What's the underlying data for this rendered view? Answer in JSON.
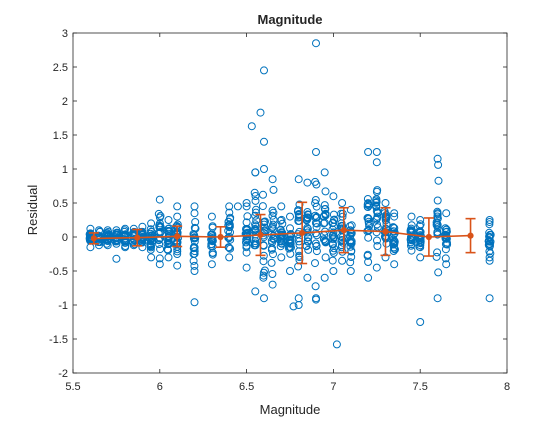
{
  "chart_data": {
    "type": "scatter",
    "title": "Magnitude",
    "xlabel": "Magnitude",
    "ylabel": "Residual",
    "xlim": [
      5.5,
      8
    ],
    "ylim": [
      -2,
      3
    ],
    "xticks": [
      "5.5",
      "6",
      "6.5",
      "7",
      "7.5",
      "8"
    ],
    "yticks": [
      "-2",
      "-1.5",
      "-1",
      "-0.5",
      "0",
      "0.5",
      "1",
      "1.5",
      "2",
      "2.5",
      "3"
    ],
    "grid": false,
    "colors": {
      "points": "#0072BD",
      "trend": "#D95319",
      "axes": "#262626"
    },
    "magnitude_groups": [
      {
        "x": 5.6,
        "ymin": -0.15,
        "ymax": 0.12
      },
      {
        "x": 5.65,
        "ymin": -0.12,
        "ymax": 0.1
      },
      {
        "x": 5.7,
        "ymin": -0.12,
        "ymax": 0.1
      },
      {
        "x": 5.75,
        "ymin": -0.1,
        "ymax": 0.1
      },
      {
        "x": 5.8,
        "ymin": -0.15,
        "ymax": 0.12
      },
      {
        "x": 5.85,
        "ymin": -0.12,
        "ymax": 0.12
      },
      {
        "x": 5.9,
        "ymin": -0.15,
        "ymax": 0.15
      },
      {
        "x": 5.95,
        "ymin": -0.3,
        "ymax": 0.2
      },
      {
        "x": 6.0,
        "ymin": -0.4,
        "ymax": 0.55
      },
      {
        "x": 6.05,
        "ymin": -0.3,
        "ymax": 0.25
      },
      {
        "x": 6.1,
        "ymin": -0.25,
        "ymax": 0.3
      },
      {
        "x": 6.2,
        "ymin": -0.5,
        "ymax": 0.35
      },
      {
        "x": 6.3,
        "ymin": -0.4,
        "ymax": 0.3
      },
      {
        "x": 6.4,
        "ymin": -0.3,
        "ymax": 0.45
      },
      {
        "x": 6.5,
        "ymin": -0.45,
        "ymax": 0.5
      },
      {
        "x": 6.55,
        "ymin": -0.8,
        "ymax": 0.95
      },
      {
        "x": 6.6,
        "ymin": -0.9,
        "ymax": 1.0
      },
      {
        "x": 6.65,
        "ymin": -0.7,
        "ymax": 0.85
      },
      {
        "x": 6.7,
        "ymin": -0.3,
        "ymax": 0.45
      },
      {
        "x": 6.75,
        "ymin": -0.5,
        "ymax": 0.3
      },
      {
        "x": 6.8,
        "ymin": -0.9,
        "ymax": 0.85
      },
      {
        "x": 6.85,
        "ymin": -0.6,
        "ymax": 0.8
      },
      {
        "x": 6.9,
        "ymin": -0.9,
        "ymax": 1.25
      },
      {
        "x": 6.95,
        "ymin": -0.6,
        "ymax": 0.95
      },
      {
        "x": 7.0,
        "ymin": -0.5,
        "ymax": 0.6
      },
      {
        "x": 7.05,
        "ymin": -0.35,
        "ymax": 0.5
      },
      {
        "x": 7.1,
        "ymin": -0.5,
        "ymax": 0.4
      },
      {
        "x": 7.2,
        "ymin": -0.6,
        "ymax": 1.25
      },
      {
        "x": 7.25,
        "ymin": -0.45,
        "ymax": 1.1
      },
      {
        "x": 7.3,
        "ymin": -0.3,
        "ymax": 0.5
      },
      {
        "x": 7.35,
        "ymin": -0.4,
        "ymax": 0.3
      },
      {
        "x": 7.45,
        "ymin": -0.2,
        "ymax": 0.3
      },
      {
        "x": 7.5,
        "ymin": -0.3,
        "ymax": 0.25
      },
      {
        "x": 7.6,
        "ymin": -0.9,
        "ymax": 1.15
      },
      {
        "x": 7.65,
        "ymin": -0.4,
        "ymax": 0.35
      },
      {
        "x": 7.9,
        "ymin": -0.35,
        "ymax": 0.25
      }
    ],
    "outliers": [
      {
        "x": 6.9,
        "y": 2.85
      },
      {
        "x": 6.6,
        "y": 2.45
      },
      {
        "x": 6.58,
        "y": 1.83
      },
      {
        "x": 6.53,
        "y": 1.63
      },
      {
        "x": 6.6,
        "y": 1.4
      },
      {
        "x": 7.25,
        "y": 1.25
      },
      {
        "x": 6.55,
        "y": 0.95
      },
      {
        "x": 6.2,
        "y": -0.96
      },
      {
        "x": 6.77,
        "y": -1.02
      },
      {
        "x": 6.8,
        "y": -1.0
      },
      {
        "x": 6.9,
        "y": -0.92
      },
      {
        "x": 7.02,
        "y": -1.58
      },
      {
        "x": 7.5,
        "y": -1.25
      },
      {
        "x": 7.9,
        "y": -0.9
      },
      {
        "x": 7.9,
        "y": 0.22
      },
      {
        "x": 7.9,
        "y": -0.3
      },
      {
        "x": 5.75,
        "y": -0.32
      },
      {
        "x": 6.1,
        "y": -0.42
      },
      {
        "x": 6.45,
        "y": 0.45
      },
      {
        "x": 6.5,
        "y": 0.45
      },
      {
        "x": 7.35,
        "y": 0.35
      },
      {
        "x": 6.2,
        "y": 0.45
      },
      {
        "x": 6.1,
        "y": 0.45
      }
    ],
    "trend": [
      {
        "x": 5.62,
        "y": -0.02,
        "err": 0.08
      },
      {
        "x": 5.87,
        "y": -0.01,
        "err": 0.12
      },
      {
        "x": 6.1,
        "y": 0.01,
        "err": 0.15
      },
      {
        "x": 6.35,
        "y": 0.0,
        "err": 0.15
      },
      {
        "x": 6.58,
        "y": 0.03,
        "err": 0.3
      },
      {
        "x": 6.82,
        "y": 0.06,
        "err": 0.45
      },
      {
        "x": 7.06,
        "y": 0.1,
        "err": 0.33
      },
      {
        "x": 7.3,
        "y": 0.08,
        "err": 0.35
      },
      {
        "x": 7.55,
        "y": 0.0,
        "err": 0.28
      },
      {
        "x": 7.79,
        "y": 0.02,
        "err": 0.25
      }
    ]
  }
}
